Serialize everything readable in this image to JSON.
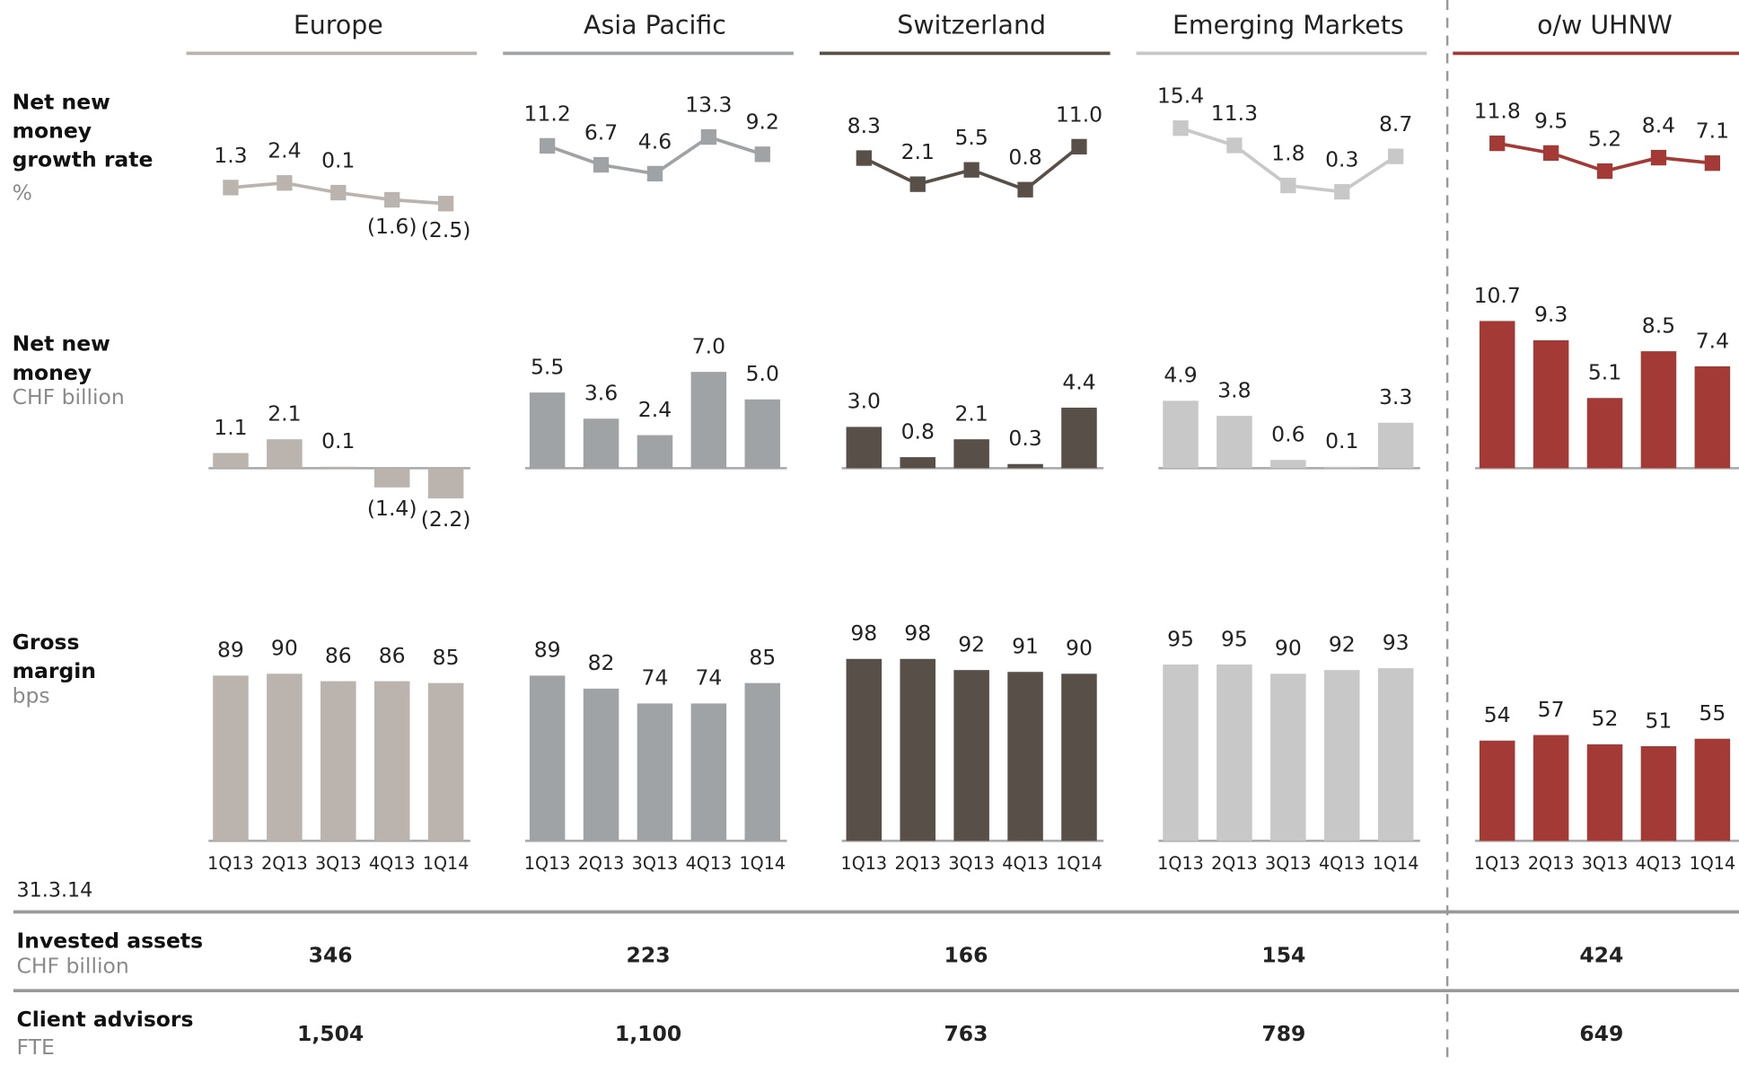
{
  "chart_data": [
    {
      "type": "panel",
      "title": "Europe",
      "color": "#bbb3ad",
      "categories": [
        "1Q13",
        "2Q13",
        "3Q13",
        "4Q13",
        "1Q14"
      ],
      "growth": {
        "type": "line",
        "values": [
          1.3,
          2.4,
          0.1,
          -1.6,
          -2.5
        ],
        "value_labels": [
          "1.3",
          "2.4",
          "0.1",
          "(1.6)",
          "(2.5)"
        ]
      },
      "nnm": {
        "type": "bar",
        "values": [
          1.1,
          2.1,
          0.1,
          -1.4,
          -2.2
        ],
        "value_labels": [
          "1.1",
          "2.1",
          "0.1",
          "(1.4)",
          "(2.2)"
        ]
      },
      "margin": {
        "type": "bar",
        "values": [
          89,
          90,
          86,
          86,
          85
        ]
      }
    },
    {
      "type": "panel",
      "title": "Asia Pacific",
      "color": "#a0a3a6",
      "categories": [
        "1Q13",
        "2Q13",
        "3Q13",
        "4Q13",
        "1Q14"
      ],
      "growth": {
        "type": "line",
        "values": [
          11.2,
          6.7,
          4.6,
          13.3,
          9.2
        ],
        "value_labels": [
          "11.2",
          "6.7",
          "4.6",
          "13.3",
          "9.2"
        ]
      },
      "nnm": {
        "type": "bar",
        "values": [
          5.5,
          3.6,
          2.4,
          7.0,
          5.0
        ],
        "value_labels": [
          "5.5",
          "3.6",
          "2.4",
          "7.0",
          "5.0"
        ]
      },
      "margin": {
        "type": "bar",
        "values": [
          89,
          82,
          74,
          74,
          85
        ]
      }
    },
    {
      "type": "panel",
      "title": "Switzerland",
      "color": "#585048",
      "categories": [
        "1Q13",
        "2Q13",
        "3Q13",
        "4Q13",
        "1Q14"
      ],
      "growth": {
        "type": "line",
        "values": [
          8.3,
          2.1,
          5.5,
          0.8,
          11.0
        ],
        "value_labels": [
          "8.3",
          "2.1",
          "5.5",
          "0.8",
          "11.0"
        ]
      },
      "nnm": {
        "type": "bar",
        "values": [
          3.0,
          0.8,
          2.1,
          0.3,
          4.4
        ],
        "value_labels": [
          "3.0",
          "0.8",
          "2.1",
          "0.3",
          "4.4"
        ]
      },
      "margin": {
        "type": "bar",
        "values": [
          98,
          98,
          92,
          91,
          90
        ]
      }
    },
    {
      "type": "panel",
      "title": "Emerging Markets",
      "color": "#c8c8c8",
      "categories": [
        "1Q13",
        "2Q13",
        "3Q13",
        "4Q13",
        "1Q14"
      ],
      "growth": {
        "type": "line",
        "values": [
          15.4,
          11.3,
          1.8,
          0.3,
          8.7
        ],
        "value_labels": [
          "15.4",
          "11.3",
          "1.8",
          "0.3",
          "8.7"
        ]
      },
      "nnm": {
        "type": "bar",
        "values": [
          4.9,
          3.8,
          0.6,
          0.1,
          3.3
        ],
        "value_labels": [
          "4.9",
          "3.8",
          "0.6",
          "0.1",
          "3.3"
        ]
      },
      "margin": {
        "type": "bar",
        "values": [
          95,
          95,
          90,
          92,
          93
        ]
      }
    },
    {
      "type": "panel",
      "title": "o/w UHNW",
      "color": "#a33a36",
      "categories": [
        "1Q13",
        "2Q13",
        "3Q13",
        "4Q13",
        "1Q14"
      ],
      "growth": {
        "type": "line",
        "values": [
          11.8,
          9.5,
          5.2,
          8.4,
          7.1
        ],
        "value_labels": [
          "11.8",
          "9.5",
          "5.2",
          "8.4",
          "7.1"
        ]
      },
      "nnm": {
        "type": "bar",
        "values": [
          10.7,
          9.3,
          5.1,
          8.5,
          7.4
        ],
        "value_labels": [
          "10.7",
          "9.3",
          "5.1",
          "8.5",
          "7.4"
        ]
      },
      "margin": {
        "type": "bar",
        "values": [
          54,
          57,
          52,
          51,
          55
        ]
      }
    }
  ],
  "rows": [
    {
      "lines": [
        "Net new",
        "money",
        "growth rate"
      ],
      "unit": "%"
    },
    {
      "lines": [
        "Net new",
        "money"
      ],
      "unit": "CHF billion"
    },
    {
      "lines": [
        "Gross",
        "margin"
      ],
      "unit": "bps"
    }
  ],
  "date": "31.3.14",
  "table": {
    "rows": [
      {
        "label": "Invested assets",
        "unit": "CHF billion",
        "values": [
          "346",
          "223",
          "166",
          "154",
          "424"
        ]
      },
      {
        "label": "Client advisors",
        "unit": "FTE",
        "values": [
          "1,504",
          "1,100",
          "763",
          "789",
          "649"
        ]
      }
    ]
  }
}
